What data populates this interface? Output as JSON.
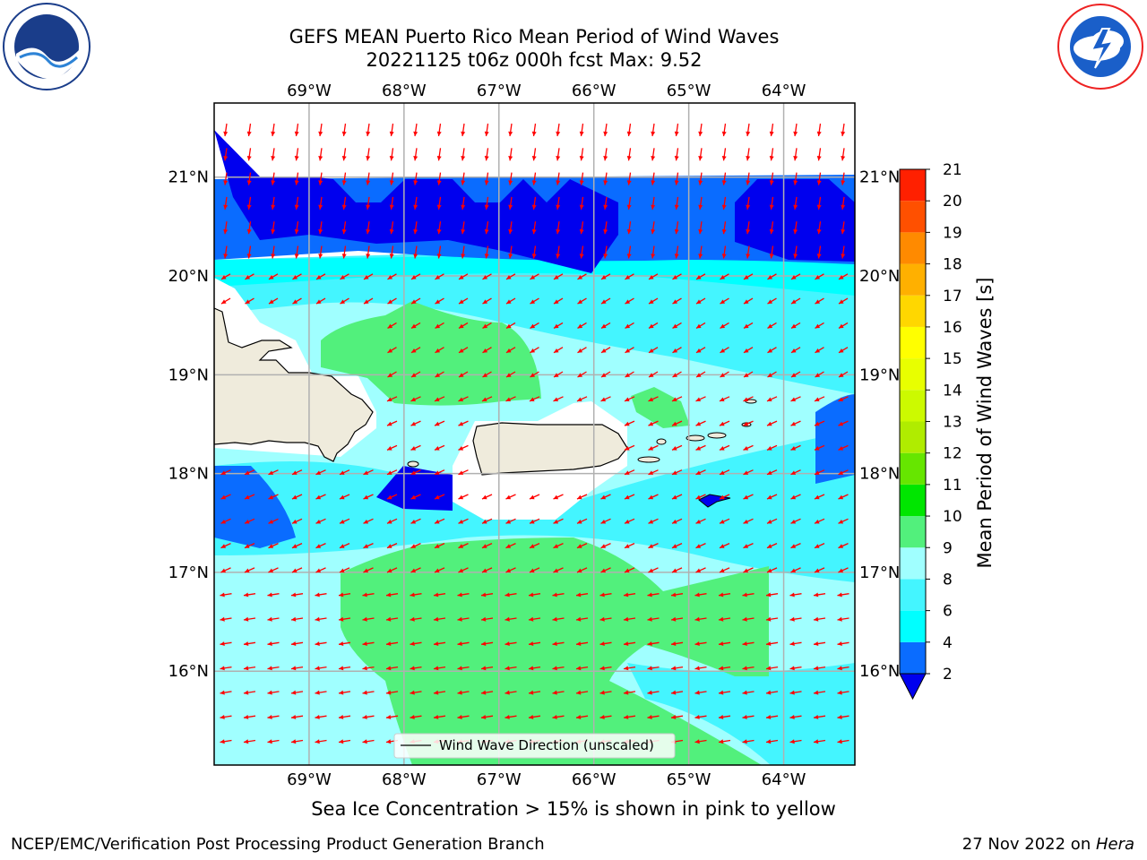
{
  "header": {
    "title_line1": "GEFS MEAN Puerto Rico Mean Period of Wind Waves",
    "title_line2": "20221125 t06z 000h fcst   Max: 9.52"
  },
  "logos": {
    "left": "noaa-logo",
    "right": "nws-logo"
  },
  "map": {
    "lon_labels": [
      "69°W",
      "68°W",
      "67°W",
      "66°W",
      "65°W",
      "64°W"
    ],
    "lat_labels": [
      "21°N",
      "20°N",
      "19°N",
      "18°N",
      "17°N",
      "16°N"
    ],
    "lon_values": [
      -69,
      -68,
      -67,
      -66,
      -65,
      -64
    ],
    "lat_values": [
      21,
      20,
      19,
      18,
      17,
      16
    ],
    "lon_range": [
      -70,
      -63.25
    ],
    "lat_range": [
      15.05,
      21.75
    ],
    "land_color": "#efebdc",
    "arrow_color": "#ff0000",
    "legend_label": "Wind Wave Direction (unscaled)"
  },
  "colorbar": {
    "label": "Mean Period of Wind Waves [s]",
    "ticks": [
      "2",
      "4",
      "6",
      "8",
      "9",
      "10",
      "11",
      "12",
      "13",
      "14",
      "15",
      "16",
      "17",
      "18",
      "19",
      "20",
      "21"
    ],
    "colors": [
      "#0000ee",
      "#0a6cff",
      "#00ffff",
      "#44f5ff",
      "#a0ffff",
      "#52f07c",
      "#00e600",
      "#66e600",
      "#b0ec00",
      "#ccfa00",
      "#e8ff00",
      "#ffff00",
      "#ffd700",
      "#ffb000",
      "#ff8a00",
      "#ff5000",
      "#ff2000",
      "#ff0000"
    ]
  },
  "notes": {
    "ice": "Sea Ice Concentration > 15% is shown in pink to yellow"
  },
  "footer": {
    "left": "NCEP/EMC/Verification Post Processing Product Generation Branch",
    "right_date": "27 Nov 2022 on ",
    "right_host": "Hera"
  }
}
